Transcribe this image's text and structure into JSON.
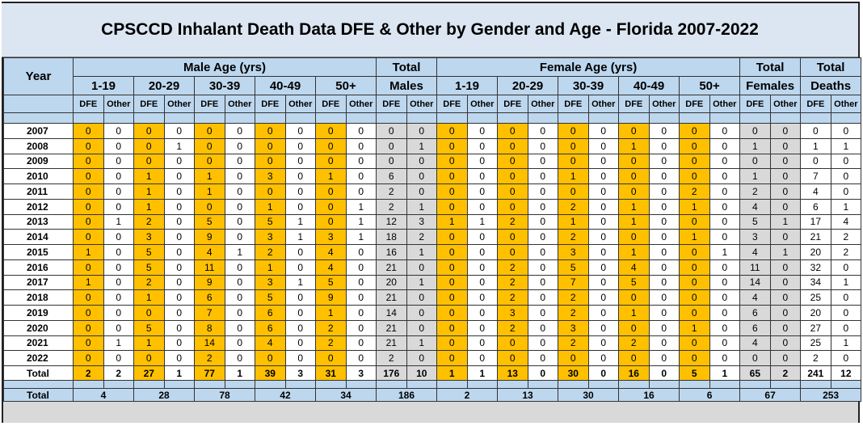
{
  "title": "CPSCCD Inhalant Death Data DFE & Other by Gender and Age - Florida 2007-2022",
  "headers": {
    "year": "Year",
    "male_age": "Male Age (yrs)",
    "female_age": "Female Age (yrs)",
    "total_males": [
      "Total",
      "Males"
    ],
    "total_females": [
      "Total",
      "Females"
    ],
    "total_deaths": [
      "Total",
      "Deaths"
    ],
    "age_groups": [
      "1-19",
      "20-29",
      "30-39",
      "40-49",
      "50+"
    ],
    "dfe": "DFE",
    "other": "Other"
  },
  "rows": [
    {
      "year": "2007",
      "m": [
        0,
        0,
        0,
        0,
        0,
        0,
        0,
        0,
        0,
        0
      ],
      "tm": [
        0,
        0
      ],
      "f": [
        0,
        0,
        0,
        0,
        0,
        0,
        0,
        0,
        0,
        0
      ],
      "tf": [
        0,
        0
      ],
      "td": [
        0,
        0
      ]
    },
    {
      "year": "2008",
      "m": [
        0,
        0,
        0,
        1,
        0,
        0,
        0,
        0,
        0,
        0
      ],
      "tm": [
        0,
        1
      ],
      "f": [
        0,
        0,
        0,
        0,
        0,
        0,
        1,
        0,
        0,
        0
      ],
      "tf": [
        1,
        0
      ],
      "td": [
        1,
        1
      ]
    },
    {
      "year": "2009",
      "m": [
        0,
        0,
        0,
        0,
        0,
        0,
        0,
        0,
        0,
        0
      ],
      "tm": [
        0,
        0
      ],
      "f": [
        0,
        0,
        0,
        0,
        0,
        0,
        0,
        0,
        0,
        0
      ],
      "tf": [
        0,
        0
      ],
      "td": [
        0,
        0
      ]
    },
    {
      "year": "2010",
      "m": [
        0,
        0,
        1,
        0,
        1,
        0,
        3,
        0,
        1,
        0
      ],
      "tm": [
        6,
        0
      ],
      "f": [
        0,
        0,
        0,
        0,
        1,
        0,
        0,
        0,
        0,
        0
      ],
      "tf": [
        1,
        0
      ],
      "td": [
        7,
        0
      ]
    },
    {
      "year": "2011",
      "m": [
        0,
        0,
        1,
        0,
        1,
        0,
        0,
        0,
        0,
        0
      ],
      "tm": [
        2,
        0
      ],
      "f": [
        0,
        0,
        0,
        0,
        0,
        0,
        0,
        0,
        2,
        0
      ],
      "tf": [
        2,
        0
      ],
      "td": [
        4,
        0
      ]
    },
    {
      "year": "2012",
      "m": [
        0,
        0,
        1,
        0,
        0,
        0,
        1,
        0,
        0,
        1
      ],
      "tm": [
        2,
        1
      ],
      "f": [
        0,
        0,
        0,
        0,
        2,
        0,
        1,
        0,
        1,
        0
      ],
      "tf": [
        4,
        0
      ],
      "td": [
        6,
        1
      ]
    },
    {
      "year": "2013",
      "m": [
        0,
        1,
        2,
        0,
        5,
        0,
        5,
        1,
        0,
        1
      ],
      "tm": [
        12,
        3
      ],
      "f": [
        1,
        1,
        2,
        0,
        1,
        0,
        1,
        0,
        0,
        0
      ],
      "tf": [
        5,
        1
      ],
      "td": [
        17,
        4
      ]
    },
    {
      "year": "2014",
      "m": [
        0,
        0,
        3,
        0,
        9,
        0,
        3,
        1,
        3,
        1
      ],
      "tm": [
        18,
        2
      ],
      "f": [
        0,
        0,
        0,
        0,
        2,
        0,
        0,
        0,
        1,
        0
      ],
      "tf": [
        3,
        0
      ],
      "td": [
        21,
        2
      ]
    },
    {
      "year": "2015",
      "m": [
        1,
        0,
        5,
        0,
        4,
        1,
        2,
        0,
        4,
        0
      ],
      "tm": [
        16,
        1
      ],
      "f": [
        0,
        0,
        0,
        0,
        3,
        0,
        1,
        0,
        0,
        1
      ],
      "tf": [
        4,
        1
      ],
      "td": [
        20,
        2
      ]
    },
    {
      "year": "2016",
      "m": [
        0,
        0,
        5,
        0,
        11,
        0,
        1,
        0,
        4,
        0
      ],
      "tm": [
        21,
        0
      ],
      "f": [
        0,
        0,
        2,
        0,
        5,
        0,
        4,
        0,
        0,
        0
      ],
      "tf": [
        11,
        0
      ],
      "td": [
        32,
        0
      ]
    },
    {
      "year": "2017",
      "m": [
        1,
        0,
        2,
        0,
        9,
        0,
        3,
        1,
        5,
        0
      ],
      "tm": [
        20,
        1
      ],
      "f": [
        0,
        0,
        2,
        0,
        7,
        0,
        5,
        0,
        0,
        0
      ],
      "tf": [
        14,
        0
      ],
      "td": [
        34,
        1
      ]
    },
    {
      "year": "2018",
      "m": [
        0,
        0,
        1,
        0,
        6,
        0,
        5,
        0,
        9,
        0
      ],
      "tm": [
        21,
        0
      ],
      "f": [
        0,
        0,
        2,
        0,
        2,
        0,
        0,
        0,
        0,
        0
      ],
      "tf": [
        4,
        0
      ],
      "td": [
        25,
        0
      ]
    },
    {
      "year": "2019",
      "m": [
        0,
        0,
        0,
        0,
        7,
        0,
        6,
        0,
        1,
        0
      ],
      "tm": [
        14,
        0
      ],
      "f": [
        0,
        0,
        3,
        0,
        2,
        0,
        1,
        0,
        0,
        0
      ],
      "tf": [
        6,
        0
      ],
      "td": [
        20,
        0
      ]
    },
    {
      "year": "2020",
      "m": [
        0,
        0,
        5,
        0,
        8,
        0,
        6,
        0,
        2,
        0
      ],
      "tm": [
        21,
        0
      ],
      "f": [
        0,
        0,
        2,
        0,
        3,
        0,
        0,
        0,
        1,
        0
      ],
      "tf": [
        6,
        0
      ],
      "td": [
        27,
        0
      ]
    },
    {
      "year": "2021",
      "m": [
        0,
        1,
        1,
        0,
        14,
        0,
        4,
        0,
        2,
        0
      ],
      "tm": [
        21,
        1
      ],
      "f": [
        0,
        0,
        0,
        0,
        2,
        0,
        2,
        0,
        0,
        0
      ],
      "tf": [
        4,
        0
      ],
      "td": [
        25,
        1
      ]
    },
    {
      "year": "2022",
      "m": [
        0,
        0,
        0,
        0,
        2,
        0,
        0,
        0,
        0,
        0
      ],
      "tm": [
        2,
        0
      ],
      "f": [
        0,
        0,
        0,
        0,
        0,
        0,
        0,
        0,
        0,
        0
      ],
      "tf": [
        0,
        0
      ],
      "td": [
        2,
        0
      ]
    }
  ],
  "totals_row": {
    "label": "Total",
    "m": [
      2,
      2,
      27,
      1,
      77,
      1,
      39,
      3,
      31,
      3
    ],
    "tm": [
      176,
      10
    ],
    "f": [
      1,
      1,
      13,
      0,
      30,
      0,
      16,
      0,
      5,
      1
    ],
    "tf": [
      65,
      2
    ],
    "td": [
      241,
      12
    ]
  },
  "grand_total": {
    "label": "Total",
    "m": [
      4,
      28,
      78,
      42,
      34
    ],
    "tm": 186,
    "f": [
      2,
      13,
      30,
      16,
      6
    ],
    "tf": 67,
    "td": 253
  }
}
